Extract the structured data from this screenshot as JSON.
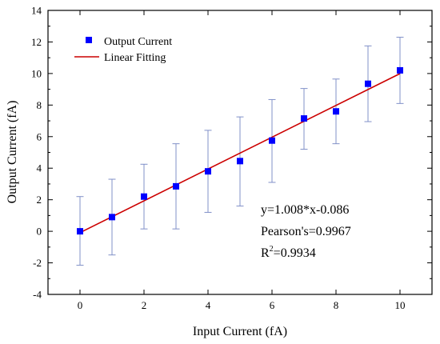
{
  "chart_data": {
    "type": "scatter",
    "xlabel": "Input Current (fA)",
    "ylabel": "Output Current (fA)",
    "xlim": [
      -1,
      11
    ],
    "ylim": [
      -4,
      14
    ],
    "x_ticks": [
      0,
      2,
      4,
      6,
      8,
      10
    ],
    "y_ticks": [
      -4,
      -2,
      0,
      2,
      4,
      6,
      8,
      10,
      12,
      14
    ],
    "grid": false,
    "legend_position": "top-left",
    "series": [
      {
        "name": "Output Current",
        "kind": "points",
        "color": "#0000ff",
        "marker": "square",
        "x": [
          0,
          1,
          2,
          3,
          4,
          5,
          6,
          7,
          8,
          9,
          10
        ],
        "y": [
          0.0,
          0.9,
          2.2,
          2.85,
          3.8,
          4.45,
          5.75,
          7.15,
          7.6,
          9.35,
          10.2
        ],
        "error_lower": [
          -2.15,
          -1.5,
          0.15,
          0.15,
          1.2,
          1.6,
          3.1,
          5.2,
          5.55,
          6.95,
          8.1
        ],
        "error_upper": [
          2.2,
          3.3,
          4.25,
          5.55,
          6.4,
          7.25,
          8.35,
          9.05,
          9.65,
          11.75,
          12.3
        ]
      },
      {
        "name": "Linear Fitting",
        "kind": "line",
        "color": "#cc0000",
        "slope": 1.008,
        "intercept": -0.086,
        "x_range": [
          0,
          10
        ]
      }
    ],
    "annotations": [
      {
        "text": "y=1.008*x-0.086"
      },
      {
        "text": "Pearson's=0.9967"
      },
      {
        "prefix": "R",
        "sup": "2",
        "suffix": "=0.9934"
      }
    ],
    "error_bar_color": "#8090c8",
    "axis_color": "#000000"
  }
}
